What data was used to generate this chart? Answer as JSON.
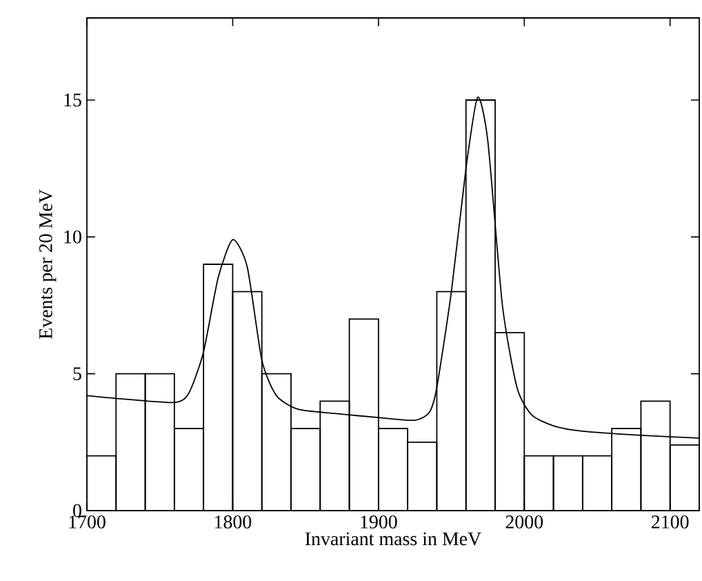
{
  "chart_data": {
    "type": "histogram",
    "xlabel": "Invariant mass in MeV",
    "ylabel": "Events per 20 MeV",
    "xlim": [
      1700,
      2120
    ],
    "ylim": [
      0,
      18
    ],
    "xticks": [
      1700,
      1800,
      1900,
      2000,
      2100
    ],
    "yticks": [
      0,
      5,
      10,
      15
    ],
    "grid": false,
    "series": [
      {
        "color": "#000000",
        "bins": [
          1700,
          1720,
          1740,
          1760,
          1780,
          1800,
          1820,
          1840,
          1860,
          1880,
          1900,
          1920,
          1940,
          1960,
          1980,
          2000,
          2020,
          2040,
          2060,
          2080,
          2100,
          2120
        ],
        "values": [
          2,
          5,
          5,
          3,
          9,
          8,
          5,
          3,
          4,
          7,
          3,
          2.5,
          8,
          15,
          6.5,
          2,
          2,
          2,
          3,
          4,
          2.4
        ]
      },
      {
        "type": "line",
        "color": "#000000",
        "x": [
          1700,
          1720,
          1760,
          1770,
          1780,
          1790,
          1800,
          1810,
          1820,
          1830,
          1845,
          1870,
          1900,
          1925,
          1935,
          1940,
          1950,
          1960,
          1968,
          1975,
          1985,
          1995,
          2005,
          2020,
          2040,
          2080,
          2120
        ],
        "values": [
          4.2,
          4.1,
          3.95,
          4.3,
          5.8,
          8.5,
          9.9,
          8.9,
          5.5,
          4.2,
          3.7,
          3.55,
          3.4,
          3.3,
          3.6,
          4.5,
          8,
          12.5,
          15.1,
          13.5,
          7.5,
          4.5,
          3.5,
          3.1,
          2.9,
          2.75,
          2.65
        ]
      }
    ]
  }
}
